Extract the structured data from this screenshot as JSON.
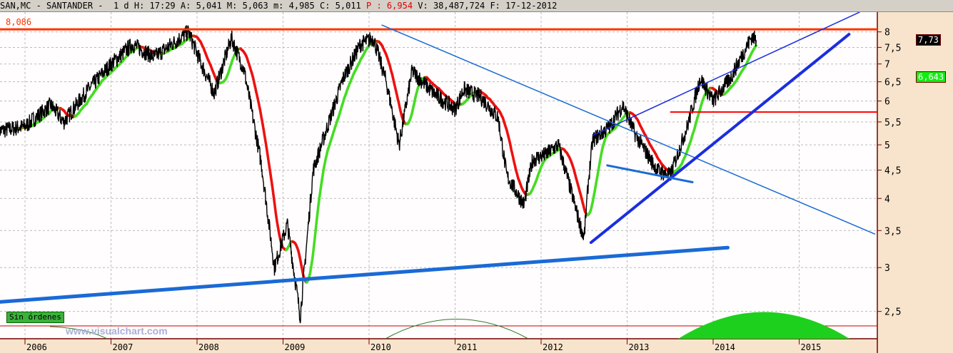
{
  "header": {
    "symbol": "SAN,MC - SANTANDER -  1 d",
    "h": "H: 17:29",
    "a": "A: 5,041",
    "m": "M: 5,063",
    "lo": "m: 4,985",
    "c": "C: 5,011",
    "p": "P : 6,954",
    "v": "V: 38,487,724",
    "f": "F: 17-12-2012"
  },
  "orders_label": "Sin órdenes",
  "watermark": "www.visualchart.com",
  "level_label": "8,086",
  "chart_data": {
    "type": "line",
    "scale": "log",
    "ylim": [
      2.2,
      8.3
    ],
    "yticks": [
      "8",
      "7,5",
      "7",
      "6,5",
      "6",
      "5,5",
      "5",
      "4,5",
      "4",
      "3,5",
      "3",
      "2,5"
    ],
    "ytick_values": [
      8,
      7.5,
      7,
      6.5,
      6,
      5.5,
      5,
      4.5,
      4,
      3.5,
      3,
      2.5
    ],
    "xticks": [
      "2006",
      "2007",
      "2008",
      "2009",
      "2010",
      "2011",
      "2012",
      "2013",
      "2014",
      "2015"
    ],
    "last_price_label": "7,73",
    "ma_label": "6,643",
    "price_path": [
      [
        2005.7,
        5.3
      ],
      [
        2006.0,
        5.4
      ],
      [
        2006.3,
        5.9
      ],
      [
        2006.45,
        5.5
      ],
      [
        2006.7,
        6.2
      ],
      [
        2007.0,
        7.0
      ],
      [
        2007.25,
        7.6
      ],
      [
        2007.5,
        7.2
      ],
      [
        2007.9,
        8.0
      ],
      [
        2008.05,
        7.0
      ],
      [
        2008.2,
        6.2
      ],
      [
        2008.4,
        7.8
      ],
      [
        2008.55,
        6.8
      ],
      [
        2008.75,
        4.6
      ],
      [
        2008.9,
        3.0
      ],
      [
        2009.05,
        3.6
      ],
      [
        2009.2,
        2.45
      ],
      [
        2009.35,
        4.5
      ],
      [
        2009.7,
        6.6
      ],
      [
        2009.9,
        7.6
      ],
      [
        2010.05,
        7.8
      ],
      [
        2010.2,
        6.5
      ],
      [
        2010.35,
        5.0
      ],
      [
        2010.5,
        6.8
      ],
      [
        2010.75,
        6.2
      ],
      [
        2011.0,
        5.8
      ],
      [
        2011.1,
        6.3
      ],
      [
        2011.3,
        6.1
      ],
      [
        2011.5,
        5.6
      ],
      [
        2011.6,
        4.4
      ],
      [
        2011.8,
        3.9
      ],
      [
        2011.9,
        4.7
      ],
      [
        2012.05,
        4.8
      ],
      [
        2012.2,
        5.0
      ],
      [
        2012.3,
        4.4
      ],
      [
        2012.45,
        3.6
      ],
      [
        2012.5,
        3.4
      ],
      [
        2012.55,
        4.3
      ],
      [
        2012.6,
        5.1
      ],
      [
        2012.8,
        5.4
      ],
      [
        2012.95,
        5.9
      ],
      [
        2013.1,
        5.2
      ],
      [
        2013.35,
        4.5
      ],
      [
        2013.5,
        4.4
      ],
      [
        2013.7,
        5.4
      ],
      [
        2013.85,
        6.6
      ],
      [
        2014.0,
        6.0
      ],
      [
        2014.2,
        6.6
      ],
      [
        2014.45,
        7.85
      ],
      [
        2014.5,
        7.73
      ]
    ],
    "hlines": [
      {
        "label": "8,086",
        "value": 8.086,
        "color": "#ff3300"
      },
      {
        "value": 5.73,
        "from": 2013.5,
        "color": "#ff0000"
      }
    ],
    "trendlines": [
      {
        "from": [
          2005.7,
          2.6
        ],
        "to": [
          2014.17,
          3.26
        ],
        "color": "#1a6ad6",
        "width": 5
      },
      {
        "from": [
          2010.15,
          8.23
        ],
        "to": [
          2015.88,
          3.45
        ],
        "color": "#1a6ad6",
        "width": 1.5
      },
      {
        "from": [
          2012.6,
          5.2
        ],
        "to": [
          2015.7,
          8.68
        ],
        "color": "#1a2ee0",
        "width": 1.5
      },
      {
        "from": [
          2012.58,
          3.33
        ],
        "to": [
          2015.58,
          7.92
        ],
        "color": "#1a2ee0",
        "width": 4
      },
      {
        "from": [
          2012.77,
          4.59
        ],
        "to": [
          2013.76,
          4.28
        ],
        "color": "#1a6ad6",
        "width": 3
      }
    ],
    "colors": {
      "price": "#000000",
      "ma_up": "#44dd22",
      "ma_down": "#ee1111",
      "axis_bg": "#f8e4cc"
    }
  }
}
